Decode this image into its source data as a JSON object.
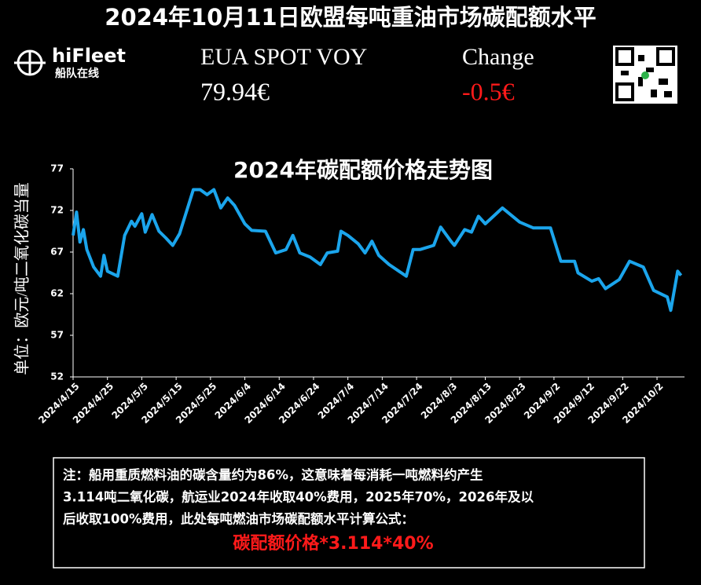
{
  "header": {
    "title": "2024年10月11日欧盟每吨重油市场碳配额水平",
    "brand": "hiFleet",
    "brand_sub": "船队在线",
    "instrument": "EUA SPOT VOY",
    "price": "79.94€",
    "change_label": "Change",
    "change": "-0.5€"
  },
  "note": {
    "lines": [
      "注：船用重质燃料油的碳含量约为86%，这意味着每消耗一吨燃料约产生",
      "3.114吨二氧化碳，航运业2024年收取40%费用，2025年70%，2026年及以",
      "后收取100%费用，此处每吨燃油市场碳配额水平计算公式："
    ],
    "formula": "碳配额价格*3.114*40%"
  },
  "chart_data": {
    "type": "line",
    "title": "2024年碳配额价格走势图",
    "y_label": "单位：欧元/吨二氧化碳当量",
    "x": [
      "2024/4/15",
      "2024/4/16",
      "2024/4/17",
      "2024/4/18",
      "2024/4/19",
      "2024/4/21",
      "2024/4/23",
      "2024/4/24",
      "2024/4/25",
      "2024/4/28",
      "2024/4/30",
      "2024/5/2",
      "2024/5/3",
      "2024/5/5",
      "2024/5/6",
      "2024/5/8",
      "2024/5/10",
      "2024/5/12",
      "2024/5/14",
      "2024/5/16",
      "2024/5/20",
      "2024/5/22",
      "2024/5/24",
      "2024/5/26",
      "2024/5/28",
      "2024/5/30",
      "2024/6/1",
      "2024/6/4",
      "2024/6/6",
      "2024/6/10",
      "2024/6/13",
      "2024/6/16",
      "2024/6/18",
      "2024/6/20",
      "2024/6/23",
      "2024/6/26",
      "2024/6/28",
      "2024/7/1",
      "2024/7/2",
      "2024/7/4",
      "2024/7/7",
      "2024/7/9",
      "2024/7/11",
      "2024/7/13",
      "2024/7/16",
      "2024/7/21",
      "2024/7/23",
      "2024/7/25",
      "2024/7/29",
      "2024/7/31",
      "2024/8/3",
      "2024/8/4",
      "2024/8/7",
      "2024/8/9",
      "2024/8/11",
      "2024/8/13",
      "2024/8/18",
      "2024/8/23",
      "2024/8/27",
      "2024/9/1",
      "2024/9/4",
      "2024/9/8",
      "2024/9/9",
      "2024/9/13",
      "2024/9/15",
      "2024/9/17",
      "2024/9/21",
      "2024/9/24",
      "2024/9/28",
      "2024/10/1",
      "2024/10/5",
      "2024/10/6",
      "2024/10/8",
      "2024/10/9"
    ],
    "series": [
      {
        "name": "EUA",
        "color": "#1ba5ec",
        "values": [
          69.0,
          71.8,
          68.2,
          69.7,
          67.3,
          65.2,
          64.1,
          66.6,
          64.7,
          64.1,
          69.0,
          70.7,
          70.1,
          71.6,
          69.4,
          71.5,
          69.5,
          68.7,
          67.8,
          69.2,
          74.5,
          74.5,
          73.9,
          74.5,
          72.3,
          73.5,
          72.6,
          70.4,
          69.6,
          69.5,
          66.9,
          67.3,
          69.0,
          66.9,
          66.4,
          65.5,
          66.9,
          67.1,
          69.5,
          69.0,
          68.0,
          66.9,
          68.3,
          66.6,
          65.5,
          64.1,
          67.3,
          67.3,
          67.8,
          70.0,
          68.3,
          67.8,
          69.7,
          69.4,
          71.3,
          70.4,
          72.3,
          70.6,
          69.9,
          69.9,
          65.9,
          65.9,
          64.5,
          63.5,
          63.8,
          62.6,
          63.7,
          65.9,
          65.2,
          62.4,
          61.6,
          60.0,
          64.7,
          64.2
        ]
      }
    ],
    "xlim": [
      "2024/4/15",
      "2024/10/10"
    ],
    "xticks": [
      "2024/4/15",
      "2024/4/25",
      "2024/5/5",
      "2024/5/15",
      "2024/5/25",
      "2024/6/4",
      "2024/6/14",
      "2024/6/24",
      "2024/7/4",
      "2024/7/14",
      "2024/7/24",
      "2024/8/3",
      "2024/8/13",
      "2024/8/23",
      "2024/9/2",
      "2024/9/12",
      "2024/9/22",
      "2024/10/2"
    ],
    "ylim": [
      52,
      77
    ],
    "yticks": [
      52,
      57,
      62,
      67,
      72,
      77
    ],
    "grid": false
  }
}
